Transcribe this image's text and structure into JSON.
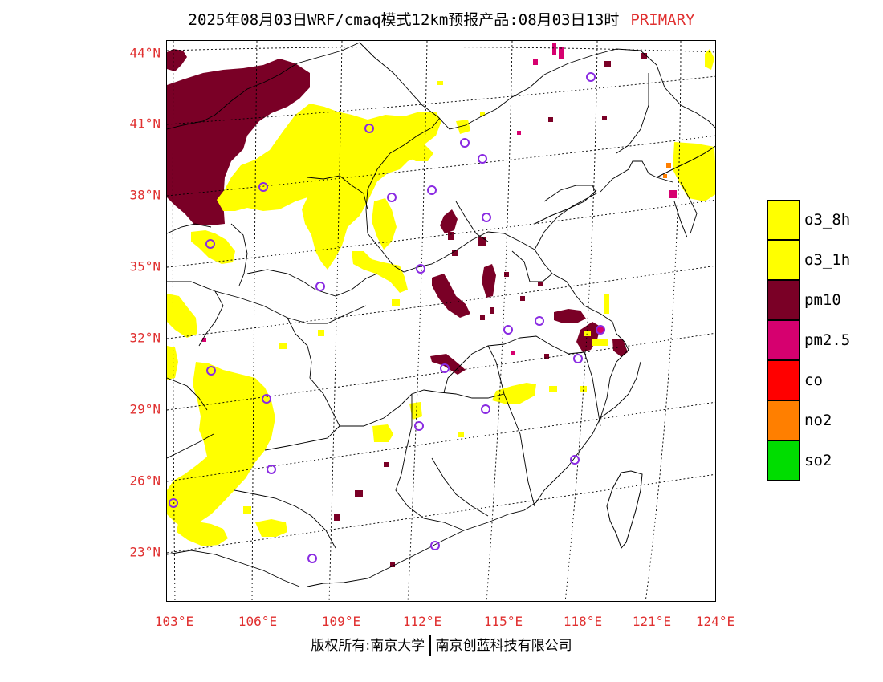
{
  "header": {
    "title": "2025年08月03日WRF/cmaq模式12km预报产品:08月03日13时",
    "badge": "PRIMARY"
  },
  "map": {
    "lat_labels": [
      "44°N",
      "41°N",
      "38°N",
      "35°N",
      "32°N",
      "29°N",
      "26°N",
      "23°N"
    ],
    "lon_labels": [
      "103°E",
      "106°E",
      "109°E",
      "112°E",
      "115°E",
      "118°E",
      "121°E",
      "124°E"
    ],
    "station_marker_color": "#8a2be2",
    "boundary_color": "#000000",
    "gridline_style": "dotted"
  },
  "legend": {
    "items": [
      {
        "label": "o3_8h",
        "color": "#ffff00"
      },
      {
        "label": "o3_1h",
        "color": "#ffff00"
      },
      {
        "label": "pm10",
        "color": "#7a0026"
      },
      {
        "label": "pm2.5",
        "color": "#d6006f"
      },
      {
        "label": "co",
        "color": "#ff0000"
      },
      {
        "label": "no2",
        "color": "#ff7f00"
      },
      {
        "label": "so2",
        "color": "#00dd00"
      }
    ]
  },
  "footer": {
    "copyright_left": "版权所有:南京大学",
    "copyright_right": "南京创蓝科技有限公司"
  }
}
